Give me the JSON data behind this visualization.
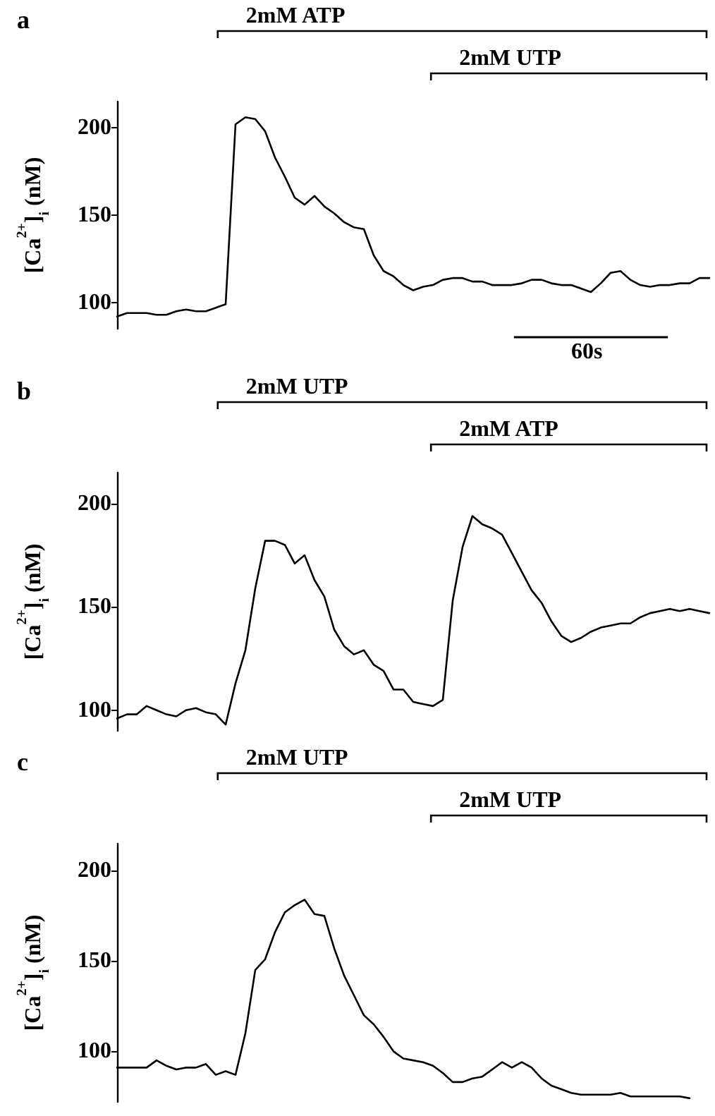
{
  "chart_data": [
    {
      "type": "line",
      "title": "a",
      "ylabel": "[Ca$^{2+}$]$_{i}$ (nM)",
      "annotations": [
        "2mM ATP",
        "2mM UTP",
        "60s"
      ],
      "categories": [
        null,
        null,
        null,
        null,
        null,
        null,
        null,
        null,
        null,
        null,
        null,
        null,
        null,
        null,
        null,
        null,
        null,
        null,
        null,
        null,
        null,
        null,
        null,
        null,
        null,
        null,
        null,
        null,
        null,
        null,
        null,
        null,
        null,
        null,
        null,
        null,
        null,
        null,
        null,
        null,
        null,
        null,
        null,
        null,
        null,
        null,
        null,
        null,
        null,
        null,
        null,
        null,
        null,
        null,
        null,
        null,
        null,
        null,
        null,
        null,
        null
      ],
      "series": [
        {
          "color": "#000000",
          "values": [
            92,
            94,
            94,
            94,
            93,
            93,
            95,
            96,
            95,
            95,
            97,
            99,
            202,
            206,
            205,
            198,
            183,
            172,
            160,
            156,
            161,
            155,
            151,
            146,
            143,
            142,
            127,
            118,
            115,
            110,
            107,
            109,
            110,
            113,
            114,
            114,
            112,
            112,
            110,
            110,
            110,
            111,
            113,
            113,
            111,
            110,
            110,
            108,
            106,
            111,
            117,
            118,
            113,
            110,
            109,
            110,
            110,
            111,
            111,
            114,
            114
          ]
        }
      ],
      "ylim": [
        85,
        215
      ],
      "yticks": [
        100,
        150,
        200
      ],
      "tick_labels": "y",
      "grid": false,
      "marker": "none",
      "line_style": "solid"
    },
    {
      "type": "line",
      "title": "b",
      "ylabel": "[Ca$^{2+}$]$_{i}$ (nM)",
      "annotations": [
        "2mM UTP",
        "2mM ATP"
      ],
      "categories": [
        null,
        null,
        null,
        null,
        null,
        null,
        null,
        null,
        null,
        null,
        null,
        null,
        null,
        null,
        null,
        null,
        null,
        null,
        null,
        null,
        null,
        null,
        null,
        null,
        null,
        null,
        null,
        null,
        null,
        null,
        null,
        null,
        null,
        null,
        null,
        null,
        null,
        null,
        null,
        null,
        null,
        null,
        null,
        null,
        null,
        null,
        null,
        null,
        null,
        null,
        null,
        null,
        null,
        null,
        null,
        null,
        null,
        null,
        null,
        null,
        null
      ],
      "series": [
        {
          "color": "#000000",
          "values": [
            96,
            98,
            98,
            102,
            100,
            98,
            97,
            100,
            101,
            99,
            98,
            93,
            113,
            129,
            159,
            182,
            182,
            180,
            171,
            175,
            163,
            155,
            139,
            131,
            127,
            129,
            122,
            119,
            110,
            110,
            104,
            103,
            102,
            105,
            153,
            179,
            194,
            190,
            188,
            185,
            176,
            167,
            158,
            152,
            143,
            136,
            133,
            135,
            138,
            140,
            141,
            142,
            142,
            145,
            147,
            148,
            149,
            148,
            149,
            148,
            147
          ]
        }
      ],
      "ylim": [
        90,
        215
      ],
      "yticks": [
        100,
        150,
        200
      ],
      "tick_labels": "y",
      "grid": false,
      "marker": "none",
      "line_style": "solid"
    },
    {
      "type": "line",
      "title": "c",
      "ylabel": "[Ca$^{2+}$]$_{i}$ (nM)",
      "annotations": [
        "2mM UTP",
        "2mM UTP"
      ],
      "categories": [
        null,
        null,
        null,
        null,
        null,
        null,
        null,
        null,
        null,
        null,
        null,
        null,
        null,
        null,
        null,
        null,
        null,
        null,
        null,
        null,
        null,
        null,
        null,
        null,
        null,
        null,
        null,
        null,
        null,
        null,
        null,
        null,
        null,
        null,
        null,
        null,
        null,
        null,
        null,
        null,
        null,
        null,
        null,
        null,
        null,
        null,
        null,
        null,
        null,
        null,
        null,
        null,
        null,
        null,
        null,
        null,
        null,
        null,
        null,
        null,
        null
      ],
      "series": [
        {
          "color": "#000000",
          "values": [
            91,
            91,
            91,
            91,
            95,
            92,
            90,
            91,
            91,
            93,
            87,
            89,
            87,
            110,
            145,
            151,
            166,
            177,
            181,
            184,
            176,
            175,
            157,
            142,
            131,
            120,
            115,
            108,
            100,
            96,
            95,
            94,
            92,
            88,
            83,
            83,
            85,
            86,
            90,
            94,
            91,
            94,
            91,
            85,
            81,
            79,
            77,
            76,
            76,
            76,
            76,
            77,
            75,
            75,
            75,
            75,
            75,
            75,
            74,
            null,
            null
          ]
        }
      ],
      "ylim": [
        72,
        215
      ],
      "yticks": [
        100,
        150,
        200
      ],
      "tick_labels": "y",
      "grid": false,
      "marker": "none",
      "line_style": "solid"
    }
  ]
}
